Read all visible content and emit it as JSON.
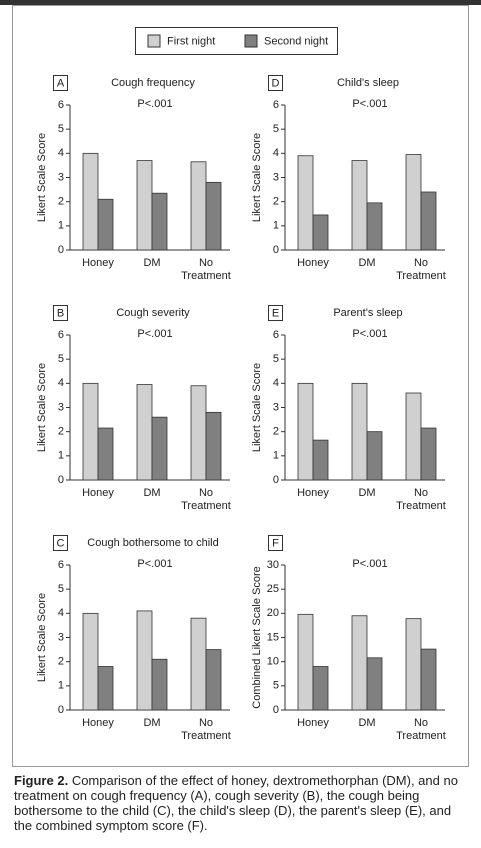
{
  "chart_data": [
    {
      "type": "bar",
      "panel": "A",
      "title": "Cough frequency",
      "annotation": "P<.001",
      "y_label": "Likert Scale Score",
      "categories": [
        "Honey",
        "DM",
        "No Treatment"
      ],
      "series": [
        {
          "name": "First night",
          "color": "#d0d0d0",
          "values": [
            4.0,
            3.7,
            3.65
          ]
        },
        {
          "name": "Second night",
          "color": "#808080",
          "values": [
            2.1,
            2.35,
            2.8
          ]
        }
      ],
      "ylim": [
        0,
        6
      ],
      "yticks": [
        0,
        1,
        2,
        3,
        4,
        5,
        6
      ]
    },
    {
      "type": "bar",
      "panel": "B",
      "title": "Cough severity",
      "annotation": "P<.001",
      "y_label": "Likert Scale Score",
      "categories": [
        "Honey",
        "DM",
        "No Treatment"
      ],
      "series": [
        {
          "name": "First night",
          "color": "#d0d0d0",
          "values": [
            4.0,
            3.95,
            3.9
          ]
        },
        {
          "name": "Second night",
          "color": "#808080",
          "values": [
            2.15,
            2.6,
            2.8
          ]
        }
      ],
      "ylim": [
        0,
        6
      ],
      "yticks": [
        0,
        1,
        2,
        3,
        4,
        5,
        6
      ]
    },
    {
      "type": "bar",
      "panel": "C",
      "title": "Cough bothersome to child",
      "annotation": "P<.001",
      "y_label": "Likert Scale Score",
      "categories": [
        "Honey",
        "DM",
        "No Treatment"
      ],
      "series": [
        {
          "name": "First night",
          "color": "#d0d0d0",
          "values": [
            4.0,
            4.1,
            3.8
          ]
        },
        {
          "name": "Second night",
          "color": "#808080",
          "values": [
            1.8,
            2.1,
            2.5
          ]
        }
      ],
      "ylim": [
        0,
        6
      ],
      "yticks": [
        0,
        1,
        2,
        3,
        4,
        5,
        6
      ]
    },
    {
      "type": "bar",
      "panel": "D",
      "title": "Child's sleep",
      "annotation": "P<.001",
      "y_label": "Likert Scale Score",
      "categories": [
        "Honey",
        "DM",
        "No Treatment"
      ],
      "series": [
        {
          "name": "First night",
          "color": "#d0d0d0",
          "values": [
            3.9,
            3.7,
            3.95
          ]
        },
        {
          "name": "Second night",
          "color": "#808080",
          "values": [
            1.45,
            1.95,
            2.4
          ]
        }
      ],
      "ylim": [
        0,
        6
      ],
      "yticks": [
        0,
        1,
        2,
        3,
        4,
        5,
        6
      ]
    },
    {
      "type": "bar",
      "panel": "E",
      "title": "Parent's sleep",
      "annotation": "P<.001",
      "y_label": "Likert Scale Score",
      "categories": [
        "Honey",
        "DM",
        "No Treatment"
      ],
      "series": [
        {
          "name": "First night",
          "color": "#d0d0d0",
          "values": [
            4.0,
            4.0,
            3.6
          ]
        },
        {
          "name": "Second night",
          "color": "#808080",
          "values": [
            1.65,
            2.0,
            2.15
          ]
        }
      ],
      "ylim": [
        0,
        6
      ],
      "yticks": [
        0,
        1,
        2,
        3,
        4,
        5,
        6
      ]
    },
    {
      "type": "bar",
      "panel": "F",
      "annotation": "P<.001",
      "y_label": "Combined Likert Scale Score",
      "categories": [
        "Honey",
        "DM",
        "No Treatment"
      ],
      "series": [
        {
          "name": "First night",
          "color": "#d0d0d0",
          "values": [
            19.8,
            19.5,
            18.9
          ]
        },
        {
          "name": "Second night",
          "color": "#808080",
          "values": [
            9.0,
            10.8,
            12.6
          ]
        }
      ],
      "ylim": [
        0,
        30
      ],
      "yticks": [
        0,
        5,
        10,
        15,
        20,
        25,
        30
      ]
    }
  ],
  "caption": {
    "label": "Figure 2.",
    "text": "Comparison of the effect of honey, dextromethorphan (DM), and no treatment on cough frequency (A), cough severity (B), the cough being bothersome to the child (C), the child's sleep (D), the parent's sleep (E), and the combined symptom score (F)."
  }
}
